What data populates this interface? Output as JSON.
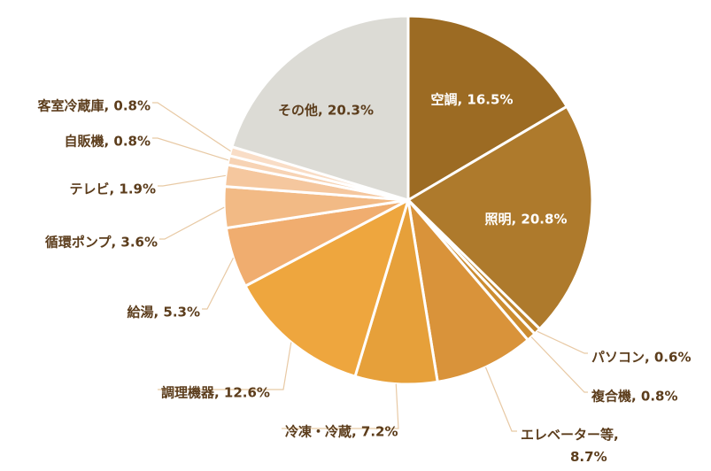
{
  "chart_data": {
    "type": "pie",
    "title": "",
    "start_angle_deg": 0,
    "direction": "clockwise",
    "slices": [
      {
        "label": "空調, 16.5%",
        "category": "空調",
        "value": 16.5,
        "color": "#9c6b23",
        "label_position": "inside"
      },
      {
        "label": "照明, 20.8%",
        "category": "照明",
        "value": 20.8,
        "color": "#ae7a2c",
        "label_position": "inside"
      },
      {
        "label": "パソコン, 0.6%",
        "category": "パソコン",
        "value": 0.6,
        "color": "#c0852d",
        "label_position": "outside"
      },
      {
        "label": "複合機, 0.8%",
        "category": "複合機",
        "value": 0.8,
        "color": "#cc8c30",
        "label_position": "outside"
      },
      {
        "label": "エレベーター等, 8.7%",
        "category": "エレベーター等",
        "value": 8.7,
        "color": "#d9933a",
        "label_position": "outside"
      },
      {
        "label": "冷凍・冷蔵, 7.2%",
        "category": "冷凍・冷蔵",
        "value": 7.2,
        "color": "#e6a03a",
        "label_position": "outside"
      },
      {
        "label": "調理機器, 12.6%",
        "category": "調理機器",
        "value": 12.6,
        "color": "#eea63e",
        "label_position": "outside"
      },
      {
        "label": "給湯, 5.3%",
        "category": "給湯",
        "value": 5.3,
        "color": "#f0ad6f",
        "label_position": "outside"
      },
      {
        "label": "循環ポンプ, 3.6%",
        "category": "循環ポンプ",
        "value": 3.6,
        "color": "#f2ba85",
        "label_position": "outside"
      },
      {
        "label": "テレビ, 1.9%",
        "category": "テレビ",
        "value": 1.9,
        "color": "#f5c79e",
        "label_position": "outside"
      },
      {
        "label": "自販機, 0.8%",
        "category": "自販機",
        "value": 0.8,
        "color": "#f7d3b4",
        "label_position": "outside"
      },
      {
        "label": "客室冷蔵庫, 0.8%",
        "category": "客室冷蔵庫",
        "value": 0.8,
        "color": "#f9ddc6",
        "label_position": "outside"
      },
      {
        "label": "その他, 20.3%",
        "category": "その他",
        "value": 20.3,
        "color": "#dcdbd5",
        "label_position": "inside"
      }
    ],
    "label_color": "#5c3d1c",
    "leader_color": "#e8c9a4"
  }
}
